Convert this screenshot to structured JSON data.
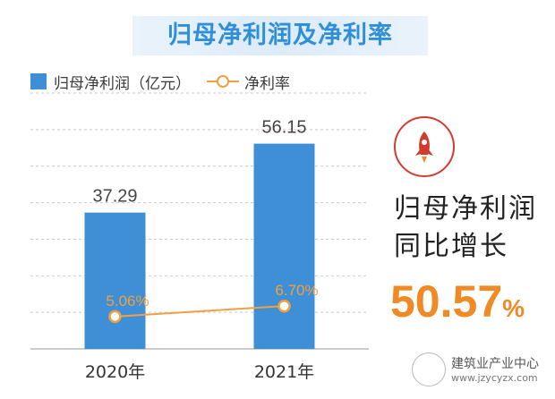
{
  "title": "归母净利润及净利率",
  "legend": {
    "bar_label": "归母净利润（亿元）",
    "line_label": "净利率"
  },
  "colors": {
    "bar": "#3f8fd6",
    "line": "#f0a040",
    "title": "#2f8fd8",
    "highlight": "#f08a24",
    "icon": "#d33b2f"
  },
  "chart_data": {
    "type": "bar",
    "categories": [
      "2020年",
      "2021年"
    ],
    "series": [
      {
        "name": "归母净利润（亿元）",
        "kind": "bar",
        "values": [
          37.29,
          56.15
        ],
        "labels": [
          "37.29",
          "56.15"
        ]
      },
      {
        "name": "净利率",
        "kind": "line",
        "values": [
          5.06,
          6.7
        ],
        "labels": [
          "5.06%",
          "6.70%"
        ]
      }
    ],
    "bar_axis_range": [
      0,
      70
    ],
    "line_axis_range": [
      0,
      40
    ],
    "grid": true,
    "legend_position": "top-left"
  },
  "side": {
    "icon": "rocket-icon",
    "line1": "归母净利润",
    "line2": "同比增长",
    "value": "50.57",
    "unit": "%"
  },
  "watermark": {
    "name": "建筑业产业中心",
    "url": "www.jzycyzx.com"
  }
}
